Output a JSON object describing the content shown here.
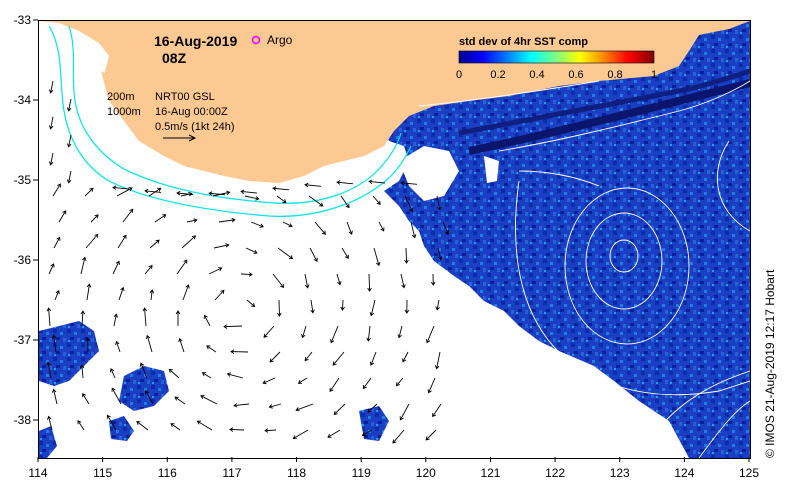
{
  "map": {
    "date_label": "16-Aug-2019",
    "time_label": "08Z",
    "argo_label": "Argo",
    "argo_color": "#ff00ff",
    "land_color": "#fcc993",
    "contour_labels": [
      "200m",
      "1000m"
    ],
    "analysis_label": "NRT00 GSL",
    "analysis_time": "16-Aug 00:00Z",
    "vector_scale_label": "0.5m/s (1kt 24h)",
    "credit": "© IMOS 21-Aug-2019 12:17 Hobart",
    "x_ticks": [
      "114",
      "115",
      "116",
      "117",
      "118",
      "119",
      "120",
      "121",
      "122",
      "123",
      "124",
      "125"
    ],
    "y_ticks": [
      "-33",
      "-34",
      "-35",
      "-36",
      "-37",
      "-38"
    ]
  },
  "colorbar": {
    "title": "std dev of 4hr SST comp",
    "ticks": [
      "0",
      "0.2",
      "0.4",
      "0.6",
      "0.8",
      "1"
    ],
    "colors": [
      "#00008f",
      "#0000ff",
      "#0080ff",
      "#00ffff",
      "#80ff80",
      "#ffff00",
      "#ff8000",
      "#ff0000",
      "#800000"
    ]
  }
}
